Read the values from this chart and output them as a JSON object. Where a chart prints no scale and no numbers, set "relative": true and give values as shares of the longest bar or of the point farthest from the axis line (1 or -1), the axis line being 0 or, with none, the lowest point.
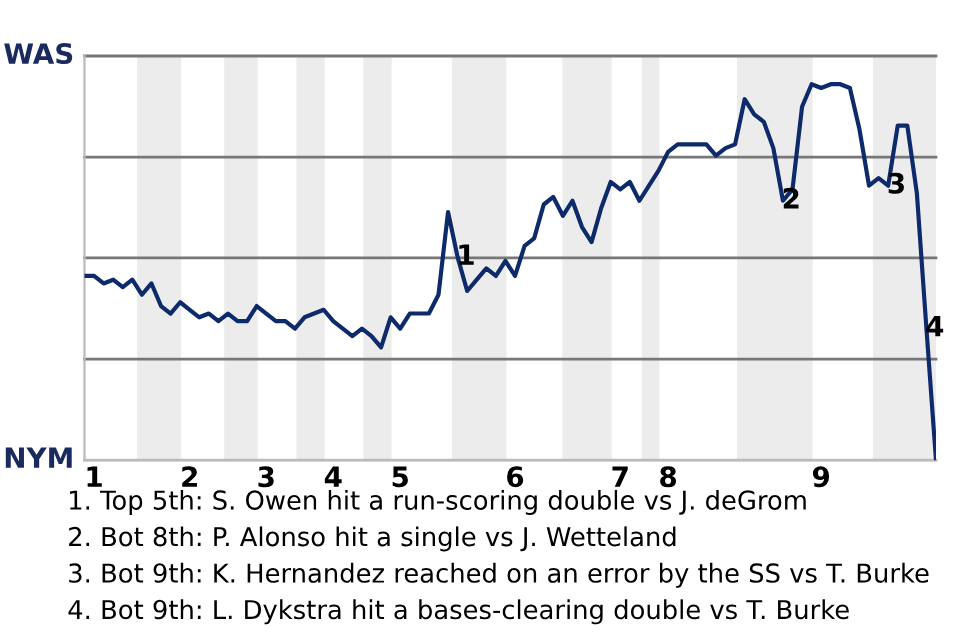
{
  "chart_data": {
    "type": "line",
    "relative": true,
    "categories": [
      null,
      "1",
      null,
      null,
      null,
      null,
      null,
      null,
      null,
      null,
      null,
      "2",
      null,
      null,
      null,
      null,
      null,
      null,
      null,
      "3",
      null,
      null,
      null,
      null,
      null,
      null,
      "4",
      null,
      null,
      null,
      null,
      null,
      null,
      "5",
      null,
      null,
      null,
      null,
      null,
      null,
      null,
      null,
      null,
      null,
      null,
      "6",
      null,
      null,
      null,
      null,
      null,
      null,
      null,
      null,
      null,
      null,
      "7",
      null,
      null,
      null,
      null,
      "8",
      null,
      null,
      null,
      null,
      null,
      null,
      null,
      null,
      null,
      null,
      null,
      null,
      null,
      null,
      null,
      "9",
      null,
      null,
      null,
      null,
      null,
      null,
      null,
      null,
      null,
      null,
      null,
      null
    ],
    "series": [
      {
        "color": "#0d2a6b",
        "values": [
          0.49,
          0.49,
          0.47,
          0.48,
          0.46,
          0.48,
          0.44,
          0.47,
          0.41,
          0.39,
          0.42,
          0.4,
          0.38,
          0.39,
          0.37,
          0.39,
          0.37,
          0.37,
          0.41,
          0.39,
          0.37,
          0.37,
          0.35,
          0.38,
          0.39,
          0.4,
          0.37,
          0.35,
          0.33,
          0.35,
          0.33,
          0.3,
          0.38,
          0.35,
          0.39,
          0.39,
          0.39,
          0.44,
          0.66,
          0.54,
          0.45,
          0.48,
          0.51,
          0.49,
          0.53,
          0.49,
          0.57,
          0.59,
          0.68,
          0.7,
          0.65,
          0.69,
          0.62,
          0.58,
          0.67,
          0.74,
          0.72,
          0.74,
          0.69,
          0.73,
          0.77,
          0.82,
          0.84,
          0.84,
          0.84,
          0.84,
          0.81,
          0.83,
          0.84,
          0.96,
          0.92,
          0.9,
          0.83,
          0.69,
          0.72,
          0.94,
          1,
          0.99,
          1,
          1,
          0.99,
          0.88,
          0.73,
          0.75,
          0.73,
          0.89,
          0.89,
          0.71,
          0.35,
          0
        ]
      }
    ],
    "legend": false,
    "marker": "none",
    "line_style": "solid",
    "ref_lines": [
      {
        "axis": "y",
        "value": 1.075,
        "label": "WAS",
        "color": "#777777"
      },
      {
        "axis": "y",
        "value": 0.806,
        "color": "#777777"
      },
      {
        "axis": "y",
        "value": 0.538,
        "color": "#777777"
      },
      {
        "axis": "y",
        "value": 0.269,
        "color": "#777777"
      },
      {
        "axis": "y",
        "value": 0,
        "label": "NYM",
        "color": "#bbbbbb"
      }
    ],
    "annotations": [
      {
        "text": "1",
        "y": 0.54
      },
      {
        "text": "2",
        "y": 0.69
      },
      {
        "text": "3",
        "y": 0.73
      },
      {
        "text": "4",
        "y": 0.35
      },
      "1. Top 5th: S. Owen hit a run-scoring double vs J. deGrom",
      "2. Bot 8th: P. Alonso hit a single vs J. Wetteland",
      "3. Bot 9th: K. Hernandez reached on an error by the SS vs T. Burke",
      "4. Bot 9th: L. Dykstra hit a bases-clearing double vs T. Burke"
    ]
  }
}
